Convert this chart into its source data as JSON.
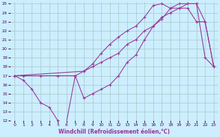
{
  "xlabel": "Windchill (Refroidissement éolien,°C)",
  "bg_color": "#cceeff",
  "grid_color": "#aacccc",
  "line_color": "#993399",
  "xlim": [
    -0.5,
    23.5
  ],
  "ylim": [
    12,
    25.2
  ],
  "xticks": [
    0,
    1,
    2,
    3,
    4,
    5,
    6,
    7,
    8,
    9,
    10,
    11,
    12,
    13,
    14,
    15,
    16,
    17,
    18,
    19,
    20,
    21,
    22,
    23
  ],
  "yticks": [
    12,
    13,
    14,
    15,
    16,
    17,
    18,
    19,
    20,
    21,
    22,
    23,
    24,
    25
  ],
  "line1_x": [
    0,
    1,
    2,
    3,
    4,
    5,
    6,
    7,
    8,
    9,
    10,
    11,
    12,
    13,
    14,
    15,
    16,
    17,
    18,
    19,
    20,
    21,
    22,
    23
  ],
  "line1_y": [
    17,
    16.5,
    15.5,
    14,
    13.5,
    12,
    11.9,
    17,
    14.5,
    15,
    15.5,
    16,
    17,
    18.5,
    19.3,
    21,
    22.5,
    23.3,
    24.5,
    25,
    25,
    25,
    19,
    18
  ],
  "line2_x": [
    0,
    1,
    3,
    5,
    7,
    8,
    9,
    10,
    11,
    12,
    13,
    14,
    15,
    16,
    17,
    18,
    19,
    20,
    21,
    22,
    23
  ],
  "line2_y": [
    17,
    17,
    17,
    17,
    17,
    17.5,
    18,
    18.5,
    19,
    19.5,
    20.5,
    21,
    22,
    22.5,
    23.5,
    24,
    24.5,
    25,
    25,
    23,
    18
  ],
  "line3_x": [
    0,
    8,
    9,
    10,
    11,
    12,
    13,
    14,
    15,
    16,
    17,
    18,
    19,
    20,
    21,
    22,
    23
  ],
  "line3_y": [
    17,
    17.5,
    18.3,
    19.5,
    20.5,
    21.3,
    22,
    22.5,
    23.5,
    24.8,
    25,
    24.5,
    24.5,
    24.5,
    23,
    23,
    18
  ]
}
